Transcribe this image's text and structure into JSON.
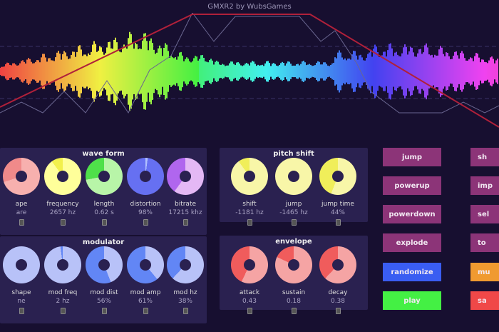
{
  "title": "GMXR2 by WubsGames",
  "panels": {
    "waveform": {
      "title": "wave form",
      "knobs": [
        {
          "label": "ape",
          "value": "are",
          "fraction": 0.3,
          "light": "#f7b0ae",
          "dark": "#f08a8a"
        },
        {
          "label": "frequency",
          "value": "2657 hz",
          "fraction": 0.1,
          "light": "#ffff9a",
          "dark": "#f2f04c"
        },
        {
          "label": "length",
          "value": "0.62 s",
          "fraction": 0.28,
          "light": "#b8f5a8",
          "dark": "#4fe04a"
        },
        {
          "label": "distortion",
          "value": "98%",
          "fraction": 0.98,
          "light": "#b0c0ff",
          "dark": "#6670f2"
        },
        {
          "label": "bitrate",
          "value": "17215 khz",
          "fraction": 0.4,
          "light": "#e4b8f5",
          "dark": "#b066ee"
        }
      ]
    },
    "modulator": {
      "title": "modulator",
      "knobs": [
        {
          "label": "shape",
          "value": "ne",
          "fraction": 0.0,
          "light": "#b8c2f8",
          "dark": "#6286f5"
        },
        {
          "label": "mod freq",
          "value": "2 hz",
          "fraction": 0.02,
          "light": "#b8c2f8",
          "dark": "#6286f5"
        },
        {
          "label": "mod dist",
          "value": "56%",
          "fraction": 0.56,
          "light": "#b8c2f8",
          "dark": "#6286f5"
        },
        {
          "label": "mod amp",
          "value": "61%",
          "fraction": 0.61,
          "light": "#b8c2f8",
          "dark": "#6286f5"
        },
        {
          "label": "mod hz",
          "value": "38%",
          "fraction": 0.38,
          "light": "#b8c2f8",
          "dark": "#6286f5"
        }
      ]
    },
    "pitch": {
      "title": "pitch shift",
      "knobs": [
        {
          "label": "shift",
          "value": "-1181 hz",
          "fraction": 0.1,
          "light": "#f8f6a8",
          "dark": "#f0ee5a"
        },
        {
          "label": "jump",
          "value": "-1465 hz",
          "fraction": 0.0,
          "light": "#f8f6a8",
          "dark": "#f0ee5a"
        },
        {
          "label": "jump time",
          "value": "44%",
          "fraction": 0.44,
          "light": "#f8f6a8",
          "dark": "#f0ee5a"
        }
      ]
    },
    "envelope": {
      "title": "envelope",
      "knobs": [
        {
          "label": "attack",
          "value": "0.43",
          "fraction": 0.43,
          "light": "#f5a4a4",
          "dark": "#f05c5c"
        },
        {
          "label": "sustain",
          "value": "0.18",
          "fraction": 0.18,
          "light": "#f5a4a4",
          "dark": "#f05c5c"
        },
        {
          "label": "decay",
          "value": "0.38",
          "fraction": 0.38,
          "light": "#f5a4a4",
          "dark": "#f05c5c"
        }
      ]
    }
  },
  "buttons_left": [
    {
      "label": "jump",
      "color": "#8c3478"
    },
    {
      "label": "powerup",
      "color": "#8c3478"
    },
    {
      "label": "powerdown",
      "color": "#8c3478"
    },
    {
      "label": "explode",
      "color": "#8c3478"
    },
    {
      "label": "randomize",
      "color": "#3a5df2"
    },
    {
      "label": "play",
      "color": "#44f044"
    }
  ],
  "buttons_right": [
    {
      "label": "sh",
      "color": "#8c3478"
    },
    {
      "label": "imp",
      "color": "#8c3478"
    },
    {
      "label": "sel",
      "color": "#8c3478"
    },
    {
      "label": "to",
      "color": "#8c3478"
    },
    {
      "label": "mu",
      "color": "#f09a30"
    },
    {
      "label": "sa",
      "color": "#f04848"
    }
  ]
}
